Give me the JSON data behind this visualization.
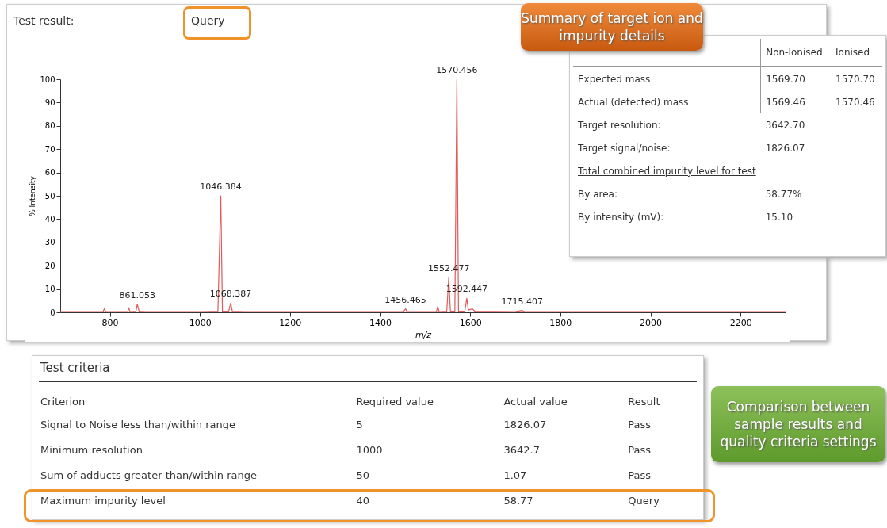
{
  "chart_data": [
    {
      "type": "line",
      "title": "Test result:",
      "subtitle": "Query",
      "xlabel": "m/z",
      "ylabel": "% Intensity",
      "x": [
        690,
        785,
        788,
        791,
        840,
        842,
        845,
        858,
        861.053,
        865,
        880,
        1000,
        1040,
        1046.384,
        1050,
        1064,
        1068.387,
        1072,
        1100,
        1400,
        1452,
        1456.465,
        1460,
        1525,
        1528,
        1531,
        1548,
        1552.477,
        1556,
        1566,
        1570.456,
        1574,
        1588,
        1592.447,
        1596,
        1605,
        1610,
        1700,
        1715.407,
        1720,
        2300
      ],
      "values": [
        0.3,
        0.3,
        1.5,
        0.3,
        0.3,
        2,
        0.3,
        0.5,
        3.5,
        0.5,
        0.3,
        0.3,
        0.5,
        50,
        0.5,
        0.5,
        4,
        0.5,
        0.3,
        0.3,
        0.3,
        1.5,
        0.3,
        0.3,
        2.5,
        0.3,
        0.5,
        15,
        0.5,
        0.5,
        100,
        0.5,
        0.5,
        6,
        1,
        1.5,
        0.5,
        0.3,
        0.8,
        0.3,
        0.3
      ],
      "color": "#e05a5a",
      "marker": "none",
      "grid": false,
      "xlim": [
        690,
        2300
      ],
      "xticks": [
        800,
        1000,
        1200,
        1400,
        1600,
        1800,
        2000,
        2200
      ],
      "ylim": [
        0,
        100
      ],
      "yticks": [
        0,
        10,
        20,
        30,
        40,
        50,
        60,
        70,
        80,
        90,
        100
      ],
      "annotations": [
        {
          "text": "861.053",
          "x": 861.053,
          "y": 3.5
        },
        {
          "text": "1046.384",
          "x": 1046.384,
          "y": 50
        },
        {
          "text": "1068.387",
          "x": 1068.387,
          "y": 4
        },
        {
          "text": "1456.465",
          "x": 1456.465,
          "y": 1.5
        },
        {
          "text": "1552.477",
          "x": 1552.477,
          "y": 15
        },
        {
          "text": "1570.456",
          "x": 1570.456,
          "y": 100
        },
        {
          "text": "1592.447",
          "x": 1592.447,
          "y": 6
        },
        {
          "text": "1715.407",
          "x": 1715.407,
          "y": 0.8
        }
      ]
    },
    {
      "type": "other",
      "title": "Summary of target ion and impurity details",
      "categories": [
        "Non-Ionised",
        "Ionised"
      ],
      "y_categories": [
        "Expected mass",
        "Actual (detected) mass",
        "Target resolution:",
        "Target signal/noise:",
        "Total combined impurity level for test",
        "By area:",
        "By intensity (mV):"
      ],
      "cell_labels": [
        [
          "1569.70",
          "1570.70"
        ],
        [
          "1569.46",
          "1570.46"
        ],
        [
          "3642.70",
          null
        ],
        [
          "1826.07",
          null
        ],
        [
          null,
          null
        ],
        [
          "58.77%",
          null
        ],
        [
          "15.10",
          null
        ]
      ]
    },
    {
      "type": "other",
      "title": "Test criteria",
      "ylabel": "Criterion",
      "categories": [
        "Required value",
        "Actual value",
        "Result"
      ],
      "y_categories": [
        "Signal to Noise less than/within range",
        "Minimum resolution",
        "Sum of adducts greater than/within range",
        "Maximum impurity level"
      ],
      "cell_labels": [
        [
          "5",
          "1826.07",
          "Pass"
        ],
        [
          "1000",
          "3642.7",
          "Pass"
        ],
        [
          "50",
          "1.07",
          "Pass"
        ],
        [
          "40",
          "58.77",
          "Query"
        ]
      ],
      "annotations": [
        "Comparison between sample results and quality criteria settings"
      ]
    }
  ]
}
